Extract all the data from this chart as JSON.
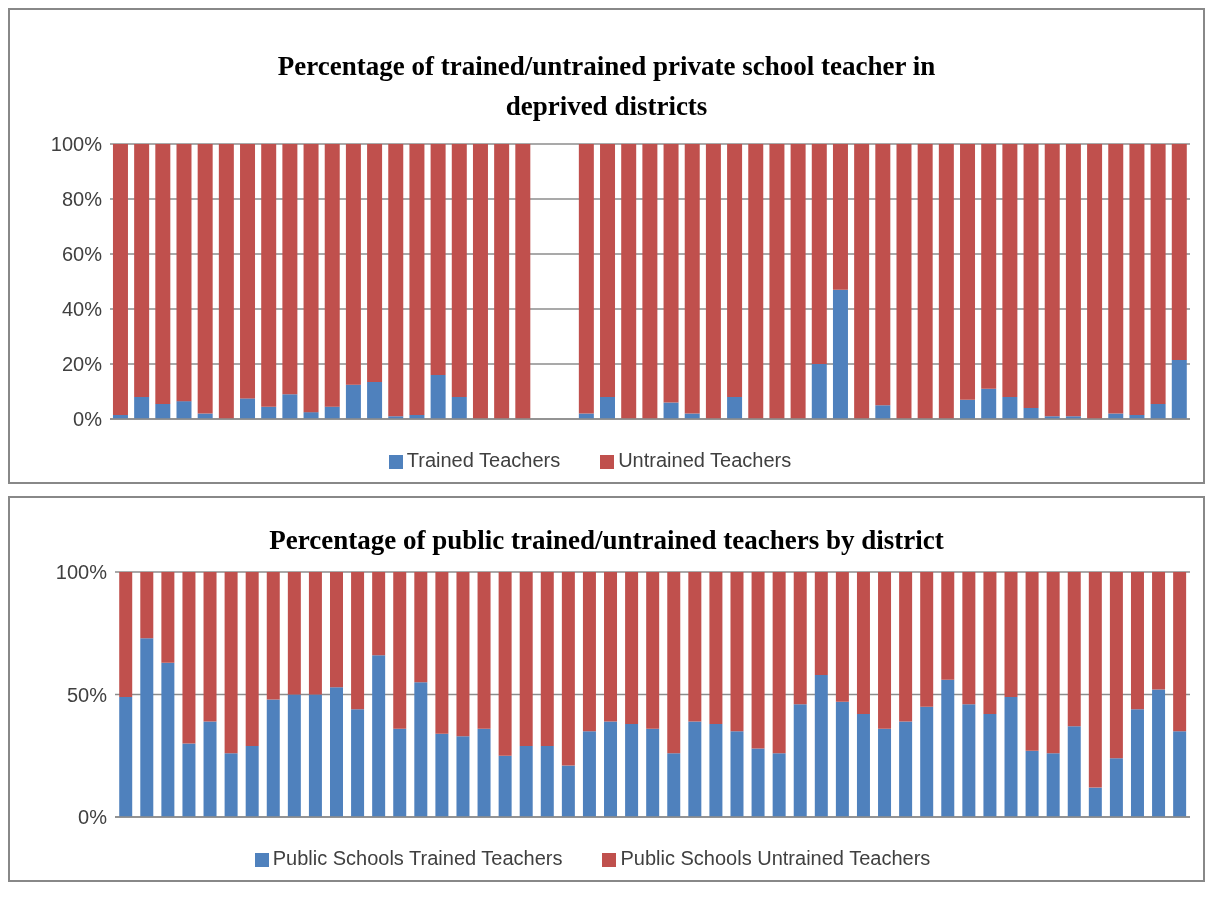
{
  "chart_data": [
    {
      "type": "bar",
      "title": "Percentage of trained/untrained private school teacher in deprived districts",
      "stacked": true,
      "categories": [
        null,
        null,
        null,
        null,
        null,
        null,
        null,
        null,
        null,
        null,
        null,
        null,
        null,
        null,
        null,
        null,
        null,
        null,
        null,
        null,
        null,
        null,
        null,
        null,
        null,
        null,
        null,
        null,
        null,
        null,
        null,
        null,
        null,
        null,
        null,
        null,
        null,
        null,
        null,
        null,
        null,
        null,
        null,
        null,
        null,
        null,
        null,
        null,
        null,
        null,
        null
      ],
      "series": [
        {
          "name": "Trained Teachers",
          "color": "#4f81bd",
          "values": [
            1.5,
            8,
            5.5,
            6.5,
            2,
            0,
            7.5,
            4.5,
            9,
            2.5,
            4.5,
            12.5,
            13.5,
            1,
            1.5,
            16,
            8,
            0,
            0,
            0,
            null,
            null,
            2,
            8,
            0,
            0,
            6,
            2,
            0,
            8,
            0,
            0,
            0,
            20,
            47,
            0,
            5,
            0,
            0,
            0,
            7,
            11,
            8,
            4,
            1,
            1,
            0,
            2,
            1.5,
            5.5,
            21.5
          ]
        },
        {
          "name": "Untrained Teachers",
          "color": "#c0504d",
          "values": [
            98.5,
            92,
            94.5,
            93.5,
            98,
            100,
            92.5,
            95.5,
            91,
            97.5,
            95.5,
            87.5,
            86.5,
            99,
            98.5,
            84,
            92,
            100,
            100,
            100,
            null,
            null,
            98,
            92,
            100,
            100,
            94,
            98,
            100,
            92,
            100,
            100,
            100,
            80,
            53,
            100,
            95,
            100,
            100,
            100,
            93,
            89,
            92,
            96,
            99,
            99,
            100,
            98,
            98.5,
            94.5,
            78.5
          ]
        }
      ],
      "ylim": [
        0,
        100
      ],
      "yticks": [
        {
          "value": 0,
          "label": "0%"
        },
        {
          "value": 20,
          "label": "20%"
        },
        {
          "value": 40,
          "label": "40%"
        },
        {
          "value": 60,
          "label": "60%"
        },
        {
          "value": 80,
          "label": "80%"
        },
        {
          "value": 100,
          "label": "100%"
        }
      ],
      "grid": "y",
      "legend": "bottom",
      "tick_labels": "y"
    },
    {
      "type": "bar",
      "title": "Percentage of public trained/untrained teachers by district",
      "stacked": true,
      "categories": [
        null,
        null,
        null,
        null,
        null,
        null,
        null,
        null,
        null,
        null,
        null,
        null,
        null,
        null,
        null,
        null,
        null,
        null,
        null,
        null,
        null,
        null,
        null,
        null,
        null,
        null,
        null,
        null,
        null,
        null,
        null,
        null,
        null,
        null,
        null,
        null,
        null,
        null,
        null,
        null,
        null,
        null,
        null,
        null,
        null,
        null,
        null,
        null,
        null,
        null,
        null
      ],
      "series": [
        {
          "name": "Public Schools Trained Teachers",
          "color": "#4f81bd",
          "values": [
            49,
            73,
            63,
            30,
            39,
            26,
            29,
            48,
            50,
            50,
            53,
            44,
            66,
            36,
            55,
            34,
            33,
            36,
            25,
            29,
            29,
            21,
            35,
            39,
            38,
            36,
            26,
            39,
            38,
            35,
            28,
            26,
            46,
            58,
            47,
            42,
            36,
            39,
            45,
            56,
            46,
            42,
            49,
            27,
            26,
            37,
            12,
            24,
            44,
            52,
            35
          ]
        },
        {
          "name": "Public Schools Untrained Teachers",
          "color": "#c0504d",
          "values": [
            51,
            27,
            37,
            70,
            61,
            74,
            71,
            52,
            50,
            50,
            47,
            56,
            34,
            64,
            45,
            66,
            67,
            64,
            75,
            71,
            71,
            79,
            65,
            61,
            62,
            64,
            74,
            61,
            62,
            65,
            72,
            74,
            54,
            42,
            53,
            58,
            64,
            61,
            55,
            44,
            54,
            58,
            51,
            73,
            74,
            63,
            88,
            76,
            56,
            48,
            65
          ]
        }
      ],
      "ylim": [
        0,
        100
      ],
      "yticks": [
        {
          "value": 0,
          "label": "0%"
        },
        {
          "value": 50,
          "label": "50%"
        },
        {
          "value": 100,
          "label": "100%"
        }
      ],
      "grid": "y",
      "legend": "bottom",
      "tick_labels": "y"
    }
  ]
}
